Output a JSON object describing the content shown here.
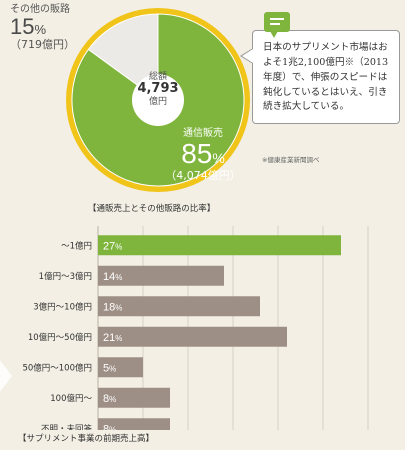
{
  "pie": {
    "other_label": "その他の販路",
    "other_pct": "15",
    "other_amount": "（719億円）",
    "center_title": "総額",
    "center_value": "4,793",
    "center_unit": "億円",
    "major_label": "通信販売",
    "major_pct": "85",
    "major_amount": "（4,074億円）",
    "pct_sign": "%",
    "caption": "【通販売上とその他販路の比率】"
  },
  "callout": {
    "text": "日本のサプリメント市場はおよそ1兆2,100億円※（2013年度）で、伸張のスピードは鈍化しているとはいえ、引き続き拡大している。",
    "source": "※健康産業新聞調べ"
  },
  "bars": {
    "caption": "【サプリメント事業の前期売上高】"
  },
  "colors": {
    "green": "#7fb53c",
    "green_dark": "#6aa02e",
    "bar_gray": "#9e8f86",
    "pie_rim": "#f0c419",
    "pie_other": "#eceae6",
    "background": "#f3efe4"
  },
  "chart_data": [
    {
      "type": "pie",
      "categories": [
        "通信販売",
        "その他の販路"
      ],
      "values": [
        85,
        15
      ],
      "amounts": [
        4074,
        719
      ],
      "total": 4793,
      "title": "【通販売上とその他販路の比率】"
    },
    {
      "type": "bar",
      "orientation": "horizontal",
      "categories": [
        "～1億円",
        "1億円～3億円",
        "3億円～10億円",
        "10億円～50億円",
        "50億円～100億円",
        "100億円～",
        "不明・未回答"
      ],
      "values": [
        27,
        14,
        18,
        21,
        5,
        8,
        8
      ],
      "value_labels": [
        "27",
        "14",
        "18",
        "21",
        "5",
        "8",
        "8"
      ],
      "xlim": [
        0,
        30
      ],
      "xticks": [
        "0",
        "5",
        "10",
        "15",
        "20",
        "25",
        "30"
      ],
      "xunit": "（%）",
      "grid": true,
      "highlight_index": 0,
      "title": "【サプリメント事業の前期売上高】"
    }
  ]
}
